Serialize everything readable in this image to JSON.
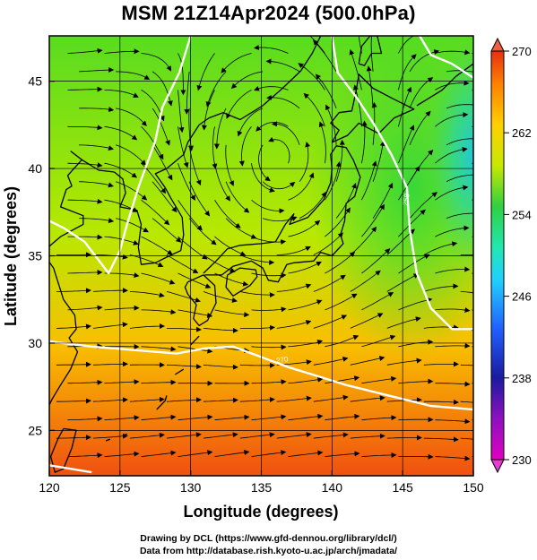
{
  "title": "MSM 21Z14Apr2024 (500.0hPa)",
  "map": {
    "xlabel": "Longitude (degrees)",
    "ylabel": "Latitude  (degrees)",
    "xlim": [
      120,
      150
    ],
    "ylim": [
      22.4,
      47.6
    ],
    "x_ticks": [
      "120",
      "125",
      "130",
      "135",
      "140",
      "145",
      "150"
    ],
    "y_ticks": [
      "25",
      "30",
      "35",
      "40",
      "45"
    ],
    "grid": true,
    "field": "temperature (K), shaded",
    "overlay": "wind streamlines with arrows",
    "low_center": {
      "lon": 136.5,
      "lat": 39.5
    },
    "contours": [
      {
        "label": "270"
      },
      {
        "label": "258"
      }
    ]
  },
  "colorbar": {
    "ticks": [
      "270",
      "262",
      "254",
      "246",
      "238",
      "230"
    ],
    "range": [
      230,
      270
    ],
    "extend": "both",
    "colors": [
      "#e000c0",
      "#1a1aa0",
      "#2060ff",
      "#20d0ff",
      "#20e8b0",
      "#30d040",
      "#c8e800",
      "#ffd000",
      "#ff8000",
      "#e83010"
    ]
  },
  "footer": {
    "line1": "Drawing by DCL (https://www.gfd-dennou.org/library/dcl/)",
    "line2": "Data from http://database.rish.kyoto-u.ac.jp/arch/jmadata/"
  }
}
